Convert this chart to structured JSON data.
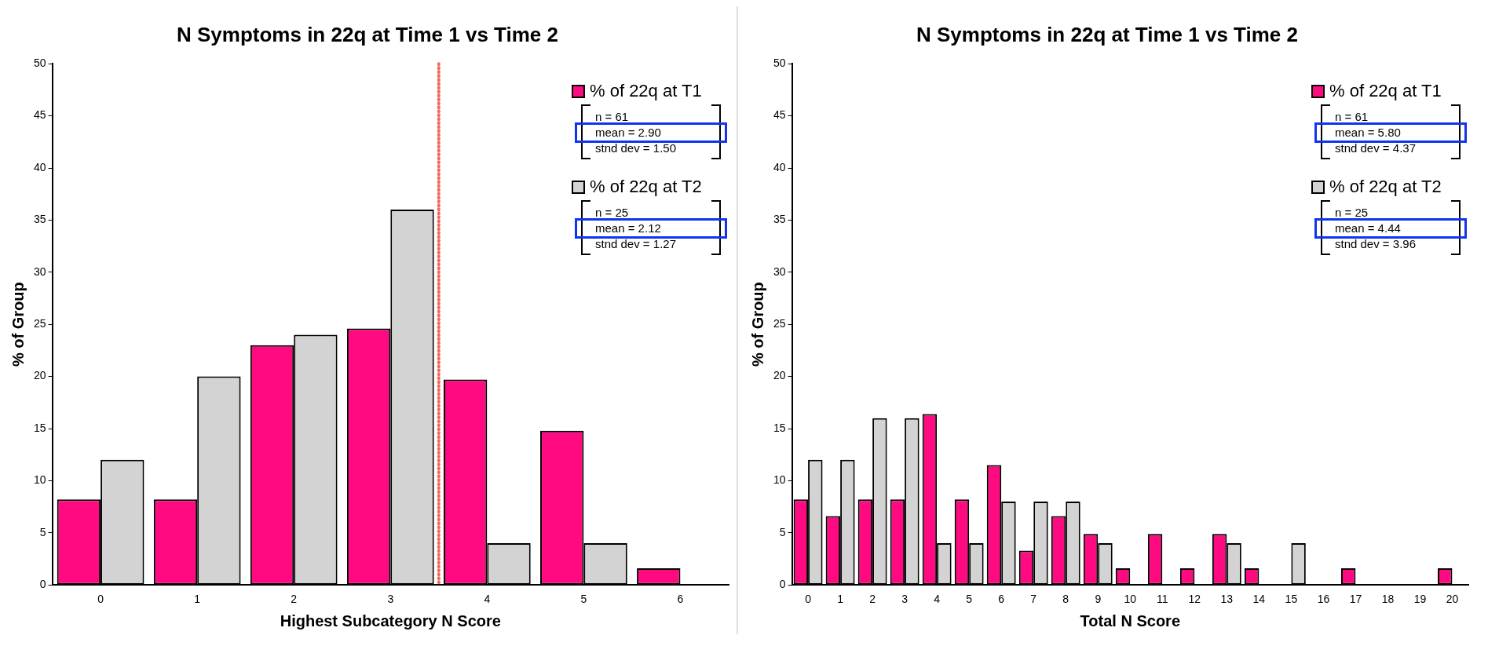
{
  "chart_data": [
    {
      "type": "bar",
      "title": "N Symptoms in 22q at Time 1 vs Time 2",
      "xlabel": "Highest Subcategory N Score",
      "ylabel": "% of Group",
      "x": [
        0,
        1,
        2,
        3,
        4,
        5,
        6
      ],
      "xlim": [
        -0.5,
        6.5
      ],
      "xticks": [
        0,
        1,
        2,
        3,
        4,
        5,
        6
      ],
      "series": [
        {
          "name": "% of 22q at T1",
          "color": "#ff0a80",
          "values": [
            8.2,
            8.2,
            23.0,
            24.6,
            19.7,
            14.8,
            1.6
          ]
        },
        {
          "name": "% of 22q at T2",
          "color": "#d3d3d3",
          "values": [
            12,
            20,
            24,
            36,
            4,
            4,
            0
          ]
        }
      ],
      "ylim": [
        0,
        50
      ],
      "yticks": [
        0,
        5,
        10,
        15,
        20,
        25,
        30,
        35,
        40,
        45,
        50
      ],
      "legend": "top right",
      "ref_lines": [
        {
          "axis": "x",
          "value": 3.5,
          "color": "#f06a5c",
          "line_style": "dotted"
        }
      ],
      "annotations": [
        "n = 61",
        "mean = 2.90",
        "stnd dev = 1.50",
        "n = 25",
        "mean = 2.12",
        "stnd dev = 1.27"
      ]
    },
    {
      "type": "bar",
      "title": "N Symptoms in 22q at Time 1 vs Time 2",
      "xlabel": "Total N Score",
      "ylabel": "% of Group",
      "x": [
        0,
        1,
        2,
        3,
        4,
        5,
        6,
        7,
        8,
        9,
        10,
        11,
        12,
        13,
        14,
        15,
        16,
        17,
        18,
        19,
        20
      ],
      "xlim": [
        -0.5,
        20.5
      ],
      "xticks": [
        0,
        1,
        2,
        3,
        4,
        5,
        6,
        7,
        8,
        9,
        10,
        11,
        12,
        13,
        14,
        15,
        16,
        17,
        18,
        19,
        20
      ],
      "series": [
        {
          "name": "% of 22q at T1",
          "color": "#ff0a80",
          "values": [
            8.2,
            6.6,
            8.2,
            8.2,
            16.4,
            8.2,
            11.5,
            3.3,
            6.6,
            4.9,
            1.6,
            4.9,
            1.6,
            4.9,
            1.6,
            0,
            0,
            1.6,
            0,
            0,
            1.6
          ]
        },
        {
          "name": "% of 22q at T2",
          "color": "#d3d3d3",
          "values": [
            12,
            12,
            16,
            16,
            4,
            4,
            8,
            8,
            8,
            4,
            0,
            0,
            0,
            4,
            0,
            4,
            0,
            0,
            0,
            0,
            0
          ]
        }
      ],
      "ylim": [
        0,
        50
      ],
      "yticks": [
        0,
        5,
        10,
        15,
        20,
        25,
        30,
        35,
        40,
        45,
        50
      ],
      "legend": "top right",
      "annotations": [
        "n = 61",
        "mean = 5.80",
        "stnd dev = 4.37",
        "n = 25",
        "mean = 4.44",
        "stnd dev = 3.96"
      ]
    }
  ]
}
